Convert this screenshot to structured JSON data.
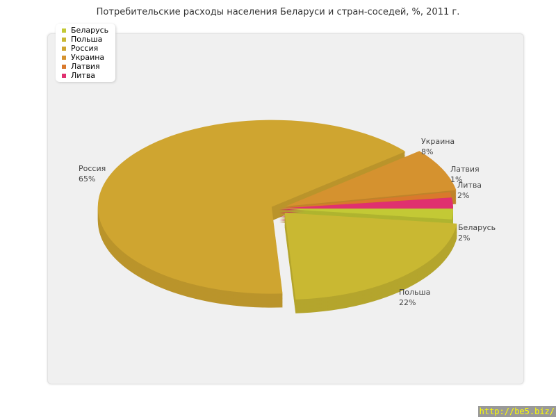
{
  "chart_data": {
    "type": "pie",
    "title": "Потребительские расходы населения Беларуси и стран-соседей, %, 2011 г.",
    "legend_position": "top-left",
    "slices": [
      {
        "label": "Беларусь",
        "value": 2,
        "display": "2%",
        "color": "#c3c935"
      },
      {
        "label": "Польша",
        "value": 22,
        "display": "22%",
        "color": "#c9b832"
      },
      {
        "label": "Россия",
        "value": 65,
        "display": "65%",
        "color": "#cfa530"
      },
      {
        "label": "Украина",
        "value": 8,
        "display": "8%",
        "color": "#d5922f"
      },
      {
        "label": "Латвия",
        "value": 1,
        "display": "1%",
        "color": "#d9792c"
      },
      {
        "label": "Литва",
        "value": 2,
        "display": "2%",
        "color": "#e0306f"
      }
    ]
  },
  "watermark": "http://be5.biz/"
}
